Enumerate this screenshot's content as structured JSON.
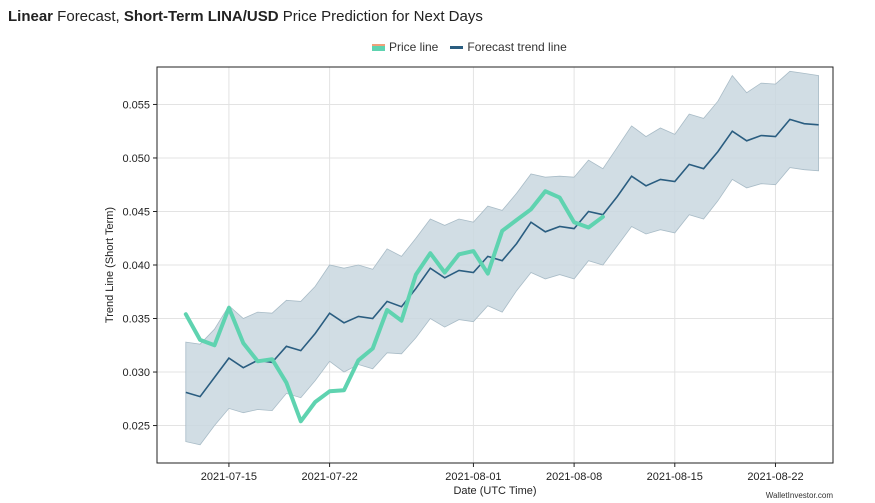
{
  "title": {
    "part1_bold": "Linear",
    "part2": " Forecast, ",
    "part3_bold": "Short-Term LINA/USD",
    "part4": " Price Prediction for Next Days"
  },
  "legend": {
    "price_label": "Price line",
    "trend_label": "Forecast trend line"
  },
  "watermark": "WalletInvestor.com",
  "colors": {
    "price_line": "#5fd3b0",
    "trend_line": "#2a5d80",
    "band_fill": "#c9d7df",
    "band_stroke": "#a9bcc7",
    "grid": "#e3e3e3"
  },
  "chart_data": {
    "type": "line",
    "xlabel": "Date (UTC Time)",
    "ylabel": "Trend Line (Short Term)",
    "x_start": "2021-07-11",
    "x_tick_labels": [
      "2021-07-15",
      "2021-07-22",
      "2021-08-01",
      "2021-08-08",
      "2021-08-15",
      "2021-08-22"
    ],
    "x_tick_dates": [
      "2021-07-15",
      "2021-07-22",
      "2021-08-01",
      "2021-08-08",
      "2021-08-15",
      "2021-08-22"
    ],
    "x_range": [
      "2021-07-10",
      "2021-08-26"
    ],
    "y_tick_labels": [
      "0.025",
      "0.030",
      "0.035",
      "0.040",
      "0.045",
      "0.050",
      "0.055"
    ],
    "y_tick_values": [
      0.025,
      0.03,
      0.035,
      0.04,
      0.045,
      0.05,
      0.055
    ],
    "ylim": [
      0.0215,
      0.0585
    ],
    "grid": true,
    "legend_position": "top-center",
    "series": [
      {
        "name": "Price line",
        "x": [
          "2021-07-12",
          "2021-07-13",
          "2021-07-14",
          "2021-07-15",
          "2021-07-16",
          "2021-07-17",
          "2021-07-18",
          "2021-07-19",
          "2021-07-20",
          "2021-07-21",
          "2021-07-22",
          "2021-07-23",
          "2021-07-24",
          "2021-07-25",
          "2021-07-26",
          "2021-07-27",
          "2021-07-28",
          "2021-07-29",
          "2021-07-30",
          "2021-07-31",
          "2021-08-01",
          "2021-08-02",
          "2021-08-03",
          "2021-08-04",
          "2021-08-05",
          "2021-08-06",
          "2021-08-07",
          "2021-08-08",
          "2021-08-09",
          "2021-08-10"
        ],
        "values": [
          0.0354,
          0.033,
          0.0325,
          0.036,
          0.0327,
          0.031,
          0.0312,
          0.029,
          0.0254,
          0.0272,
          0.0282,
          0.0283,
          0.0311,
          0.0322,
          0.0358,
          0.0348,
          0.0391,
          0.0411,
          0.0393,
          0.041,
          0.0413,
          0.0392,
          0.0432,
          0.0442,
          0.0452,
          0.0469,
          0.0463,
          0.044,
          0.0435,
          0.0445
        ]
      },
      {
        "name": "Forecast trend line",
        "x": [
          "2021-07-12",
          "2021-07-13",
          "2021-07-14",
          "2021-07-15",
          "2021-07-16",
          "2021-07-17",
          "2021-07-18",
          "2021-07-19",
          "2021-07-20",
          "2021-07-21",
          "2021-07-22",
          "2021-07-23",
          "2021-07-24",
          "2021-07-25",
          "2021-07-26",
          "2021-07-27",
          "2021-07-28",
          "2021-07-29",
          "2021-07-30",
          "2021-07-31",
          "2021-08-01",
          "2021-08-02",
          "2021-08-03",
          "2021-08-04",
          "2021-08-05",
          "2021-08-06",
          "2021-08-07",
          "2021-08-08",
          "2021-08-09",
          "2021-08-10",
          "2021-08-11",
          "2021-08-12",
          "2021-08-13",
          "2021-08-14",
          "2021-08-15",
          "2021-08-16",
          "2021-08-17",
          "2021-08-18",
          "2021-08-19",
          "2021-08-20",
          "2021-08-21",
          "2021-08-22",
          "2021-08-23",
          "2021-08-24",
          "2021-08-25"
        ],
        "values": [
          0.0281,
          0.0277,
          0.0295,
          0.0313,
          0.0304,
          0.0311,
          0.0309,
          0.0324,
          0.032,
          0.0336,
          0.0355,
          0.0346,
          0.0352,
          0.035,
          0.0366,
          0.0361,
          0.0378,
          0.0397,
          0.0388,
          0.0395,
          0.0393,
          0.0408,
          0.0404,
          0.042,
          0.044,
          0.0431,
          0.0436,
          0.0434,
          0.045,
          0.0447,
          0.0464,
          0.0483,
          0.0474,
          0.048,
          0.0478,
          0.0494,
          0.049,
          0.0506,
          0.0525,
          0.0516,
          0.0521,
          0.052,
          0.0536,
          0.0532,
          0.0531
        ]
      }
    ],
    "band": {
      "x": [
        "2021-07-12",
        "2021-07-13",
        "2021-07-14",
        "2021-07-15",
        "2021-07-16",
        "2021-07-17",
        "2021-07-18",
        "2021-07-19",
        "2021-07-20",
        "2021-07-21",
        "2021-07-22",
        "2021-07-23",
        "2021-07-24",
        "2021-07-25",
        "2021-07-26",
        "2021-07-27",
        "2021-07-28",
        "2021-07-29",
        "2021-07-30",
        "2021-07-31",
        "2021-08-01",
        "2021-08-02",
        "2021-08-03",
        "2021-08-04",
        "2021-08-05",
        "2021-08-06",
        "2021-08-07",
        "2021-08-08",
        "2021-08-09",
        "2021-08-10",
        "2021-08-11",
        "2021-08-12",
        "2021-08-13",
        "2021-08-14",
        "2021-08-15",
        "2021-08-16",
        "2021-08-17",
        "2021-08-18",
        "2021-08-19",
        "2021-08-20",
        "2021-08-21",
        "2021-08-22",
        "2021-08-23",
        "2021-08-24",
        "2021-08-25"
      ],
      "upper": [
        0.0328,
        0.0326,
        0.034,
        0.0362,
        0.035,
        0.0356,
        0.0355,
        0.0367,
        0.0366,
        0.038,
        0.04,
        0.0397,
        0.04,
        0.0396,
        0.0415,
        0.0408,
        0.0425,
        0.0443,
        0.0437,
        0.0443,
        0.044,
        0.0455,
        0.0451,
        0.0467,
        0.0485,
        0.0482,
        0.0483,
        0.0482,
        0.0498,
        0.049,
        0.051,
        0.053,
        0.052,
        0.0528,
        0.0522,
        0.0541,
        0.0537,
        0.0553,
        0.0577,
        0.0561,
        0.057,
        0.0569,
        0.0581,
        0.0579,
        0.0577
      ],
      "lower": [
        0.0235,
        0.0232,
        0.025,
        0.0266,
        0.0262,
        0.0265,
        0.0264,
        0.028,
        0.0276,
        0.0292,
        0.031,
        0.03,
        0.0307,
        0.0303,
        0.0318,
        0.0317,
        0.0332,
        0.035,
        0.0342,
        0.0349,
        0.0347,
        0.0362,
        0.0356,
        0.0376,
        0.0393,
        0.0387,
        0.0391,
        0.0387,
        0.0404,
        0.04,
        0.0418,
        0.0436,
        0.0429,
        0.0433,
        0.043,
        0.0447,
        0.0443,
        0.046,
        0.048,
        0.0472,
        0.0476,
        0.0475,
        0.0491,
        0.0489,
        0.0488
      ]
    }
  }
}
